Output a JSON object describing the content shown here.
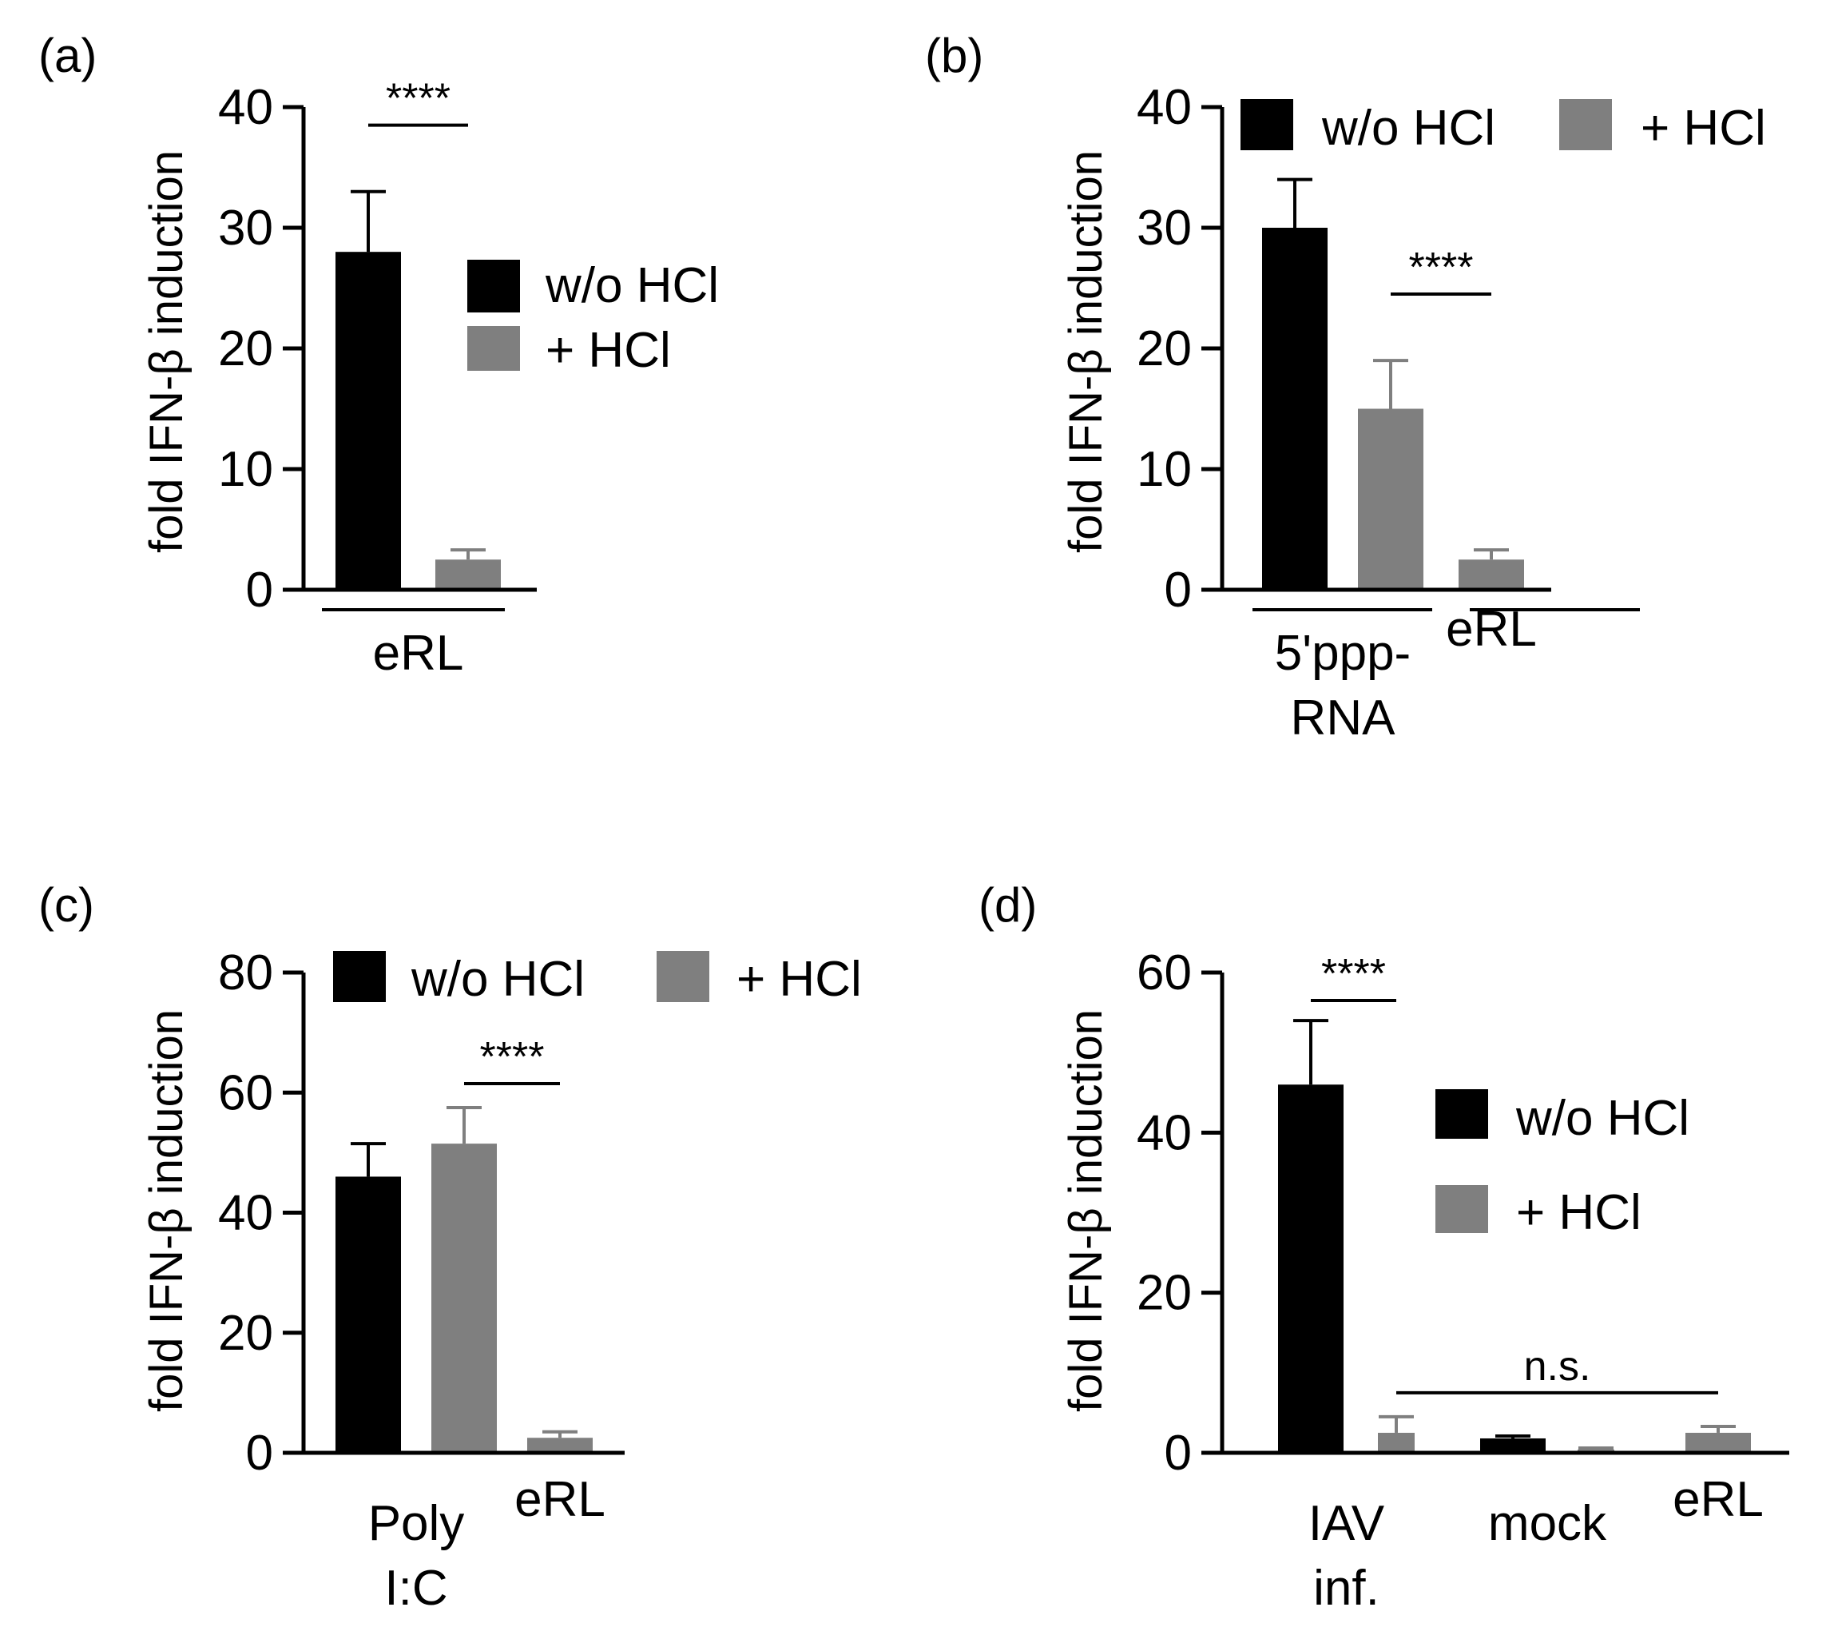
{
  "figure": {
    "colors": {
      "black": "#000000",
      "gray": "#7f7f7f"
    },
    "legend_labels": [
      "w/o HCl",
      "+ HCl"
    ]
  },
  "chart_data": [
    {
      "panel": "(a)",
      "type": "bar",
      "ylabel": "fold IFN-β induction",
      "ylim": [
        0,
        40
      ],
      "yticks": [
        "0",
        "10",
        "20",
        "30",
        "40"
      ],
      "legend": [
        "w/o HCl",
        "+ HCl"
      ],
      "legend_position": "right",
      "bars": [
        {
          "series": "w/o HCl",
          "value": 28,
          "error": 5
        },
        {
          "series": "+ HCl",
          "value": 2.5,
          "error": 0.8
        }
      ],
      "groups": [
        {
          "label": [
            "eRL"
          ],
          "bars": [
            0,
            1
          ]
        }
      ],
      "significance": [
        {
          "label": "****",
          "bars": [
            0,
            1
          ],
          "y": 38.5
        }
      ]
    },
    {
      "panel": "(b)",
      "type": "bar",
      "ylabel": "fold IFN-β induction",
      "ylim": [
        0,
        40
      ],
      "yticks": [
        "0",
        "10",
        "20",
        "30",
        "40"
      ],
      "legend": [
        "w/o HCl",
        "+ HCl"
      ],
      "legend_position": "top",
      "bars": [
        {
          "series": "w/o HCl",
          "value": 30,
          "error": 4
        },
        {
          "series": "+ HCl",
          "value": 15,
          "error": 4
        },
        {
          "series": "+ HCl",
          "value": 2.5,
          "error": 0.8
        }
      ],
      "groups": [
        {
          "label": [
            "5'ppp-",
            "RNA"
          ],
          "bars": [
            0,
            1
          ]
        },
        {
          "label": [
            "eRL"
          ],
          "bars": [
            2
          ]
        }
      ],
      "significance": [
        {
          "label": "****",
          "bars": [
            1,
            2
          ],
          "y": 24.5
        }
      ]
    },
    {
      "panel": "(c)",
      "type": "bar",
      "ylabel": "fold IFN-β induction",
      "ylim": [
        0,
        80
      ],
      "yticks": [
        "0",
        "20",
        "40",
        "60",
        "80"
      ],
      "legend": [
        "w/o HCl",
        "+ HCl"
      ],
      "legend_position": "top",
      "bars": [
        {
          "series": "w/o HCl",
          "value": 46,
          "error": 5.5
        },
        {
          "series": "+ HCl",
          "value": 51.5,
          "error": 6
        },
        {
          "series": "+ HCl",
          "value": 2.5,
          "error": 1
        }
      ],
      "groups": [
        {
          "label": [
            "Poly",
            "I:C"
          ],
          "bars": [
            0,
            1
          ]
        },
        {
          "label": [
            "eRL"
          ],
          "bars": [
            2
          ]
        }
      ],
      "significance": [
        {
          "label": "****",
          "bars": [
            1,
            2
          ],
          "y": 61.5
        }
      ]
    },
    {
      "panel": "(d)",
      "type": "bar",
      "ylabel": "fold IFN-β induction",
      "ylim": [
        0,
        60
      ],
      "yticks": [
        "0",
        "20",
        "40",
        "60"
      ],
      "legend": [
        "w/o HCl",
        "+ HCl"
      ],
      "legend_position": "right",
      "bars": [
        {
          "series": "w/o HCl",
          "value": 46,
          "error": 8
        },
        {
          "series": "+ HCl",
          "value": 2.5,
          "error": 2
        },
        {
          "series": "w/o HCl",
          "value": 1.8,
          "error": 0.3
        },
        {
          "series": "+ HCl",
          "value": 0.4,
          "error": 0.2
        },
        {
          "series": "+ HCl",
          "value": 2.5,
          "error": 0.8
        }
      ],
      "groups": [
        {
          "label": [
            "IAV",
            "inf."
          ],
          "bars": [
            0,
            1
          ]
        },
        {
          "label": [
            "mock"
          ],
          "bars": [
            2,
            3
          ]
        },
        {
          "label": [
            "eRL"
          ],
          "bars": [
            4
          ]
        }
      ],
      "significance": [
        {
          "label": "****",
          "bars": [
            0,
            1
          ],
          "y": 56.5
        },
        {
          "label": "n.s.",
          "bars": [
            1,
            4
          ],
          "y": 7.5
        }
      ]
    }
  ]
}
